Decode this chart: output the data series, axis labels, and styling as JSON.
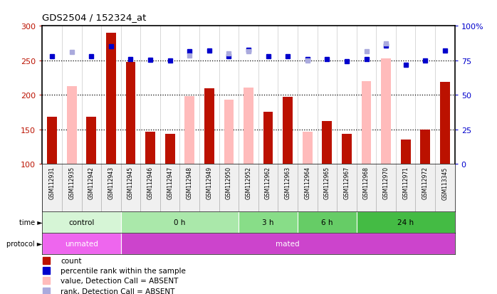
{
  "title": "GDS2504 / 152324_at",
  "samples": [
    "GSM112931",
    "GSM112935",
    "GSM112942",
    "GSM112943",
    "GSM112945",
    "GSM112946",
    "GSM112947",
    "GSM112948",
    "GSM112949",
    "GSM112950",
    "GSM112952",
    "GSM112962",
    "GSM112963",
    "GSM112964",
    "GSM112965",
    "GSM112967",
    "GSM112968",
    "GSM112970",
    "GSM112971",
    "GSM112972",
    "GSM113345"
  ],
  "red_values": [
    168,
    null,
    168,
    290,
    248,
    146,
    143,
    null,
    209,
    null,
    null,
    175,
    197,
    null,
    162,
    143,
    null,
    null,
    135,
    150,
    219
  ],
  "pink_values": [
    null,
    213,
    null,
    null,
    null,
    null,
    null,
    198,
    null,
    193,
    210,
    null,
    null,
    146,
    null,
    null,
    220,
    253,
    null,
    null,
    null
  ],
  "blue_dark_vals": [
    256,
    null,
    256,
    270,
    252,
    251,
    250,
    263,
    264,
    256,
    265,
    256,
    256,
    252,
    252,
    249,
    252,
    271,
    244,
    250,
    264
  ],
  "blue_light_vals": [
    null,
    262,
    null,
    null,
    null,
    null,
    null,
    257,
    null,
    260,
    263,
    null,
    null,
    250,
    null,
    null,
    263,
    274,
    null,
    null,
    null
  ],
  "time_groups": [
    {
      "label": "control",
      "start": 0,
      "end": 4
    },
    {
      "label": "0 h",
      "start": 4,
      "end": 10
    },
    {
      "label": "3 h",
      "start": 10,
      "end": 13
    },
    {
      "label": "6 h",
      "start": 13,
      "end": 16
    },
    {
      "label": "24 h",
      "start": 16,
      "end": 21
    }
  ],
  "time_colors": [
    "#d6f5d6",
    "#aae8aa",
    "#88dd88",
    "#66cc66",
    "#44bb44"
  ],
  "protocol_groups": [
    {
      "label": "unmated",
      "start": 0,
      "end": 4
    },
    {
      "label": "mated",
      "start": 4,
      "end": 21
    }
  ],
  "protocol_colors": [
    "#ee66ee",
    "#cc44cc"
  ],
  "ylim_left": [
    100,
    300
  ],
  "ylim_right": [
    0,
    100
  ],
  "yticks_left": [
    100,
    150,
    200,
    250,
    300
  ],
  "yticks_left_labels": [
    "100",
    "150",
    "200",
    "250",
    "300"
  ],
  "yticks_right": [
    0,
    25,
    50,
    75,
    100
  ],
  "yticks_right_labels": [
    "0",
    "25",
    "50",
    "75",
    "100%"
  ],
  "hlines": [
    150,
    200,
    250
  ],
  "red_color": "#bb1100",
  "pink_color": "#ffbbbb",
  "blue_dark_color": "#0000cc",
  "blue_light_color": "#aaaadd",
  "bar_width": 0.5,
  "bg_color": "#f0f0f0"
}
